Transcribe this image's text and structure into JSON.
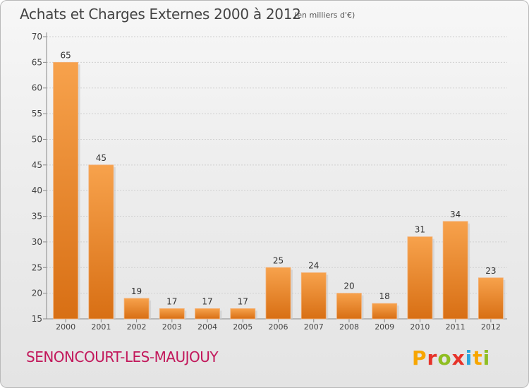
{
  "header": {
    "title": "Achats et Charges Externes 2000 à 2012",
    "unit_note": "(en milliers d'€)"
  },
  "footer": {
    "commune": "SENONCOURT-LES-MAUJOUY",
    "logo_text": "Proxiti",
    "logo_colors": [
      "#f7a600",
      "#e6332a",
      "#8fbe22",
      "#e6332a",
      "#2aa7de",
      "#f7a600",
      "#8fbe22"
    ]
  },
  "chart_data": {
    "type": "bar",
    "title": "Achats et Charges Externes 2000 à 2012",
    "subtitle": "(en milliers d'€)",
    "xlabel": "",
    "ylabel": "",
    "categories": [
      "2000",
      "2001",
      "2002",
      "2003",
      "2004",
      "2005",
      "2006",
      "2007",
      "2008",
      "2009",
      "2010",
      "2011",
      "2012"
    ],
    "values": [
      65,
      45,
      19,
      17,
      17,
      17,
      25,
      24,
      20,
      18,
      31,
      34,
      23
    ],
    "ylim": [
      15,
      70
    ],
    "yticks": [
      15,
      20,
      25,
      30,
      35,
      40,
      45,
      50,
      55,
      60,
      65,
      70
    ],
    "grid": true,
    "bar_color_light": "#f7a24c",
    "bar_color_dark": "#d86f14"
  }
}
